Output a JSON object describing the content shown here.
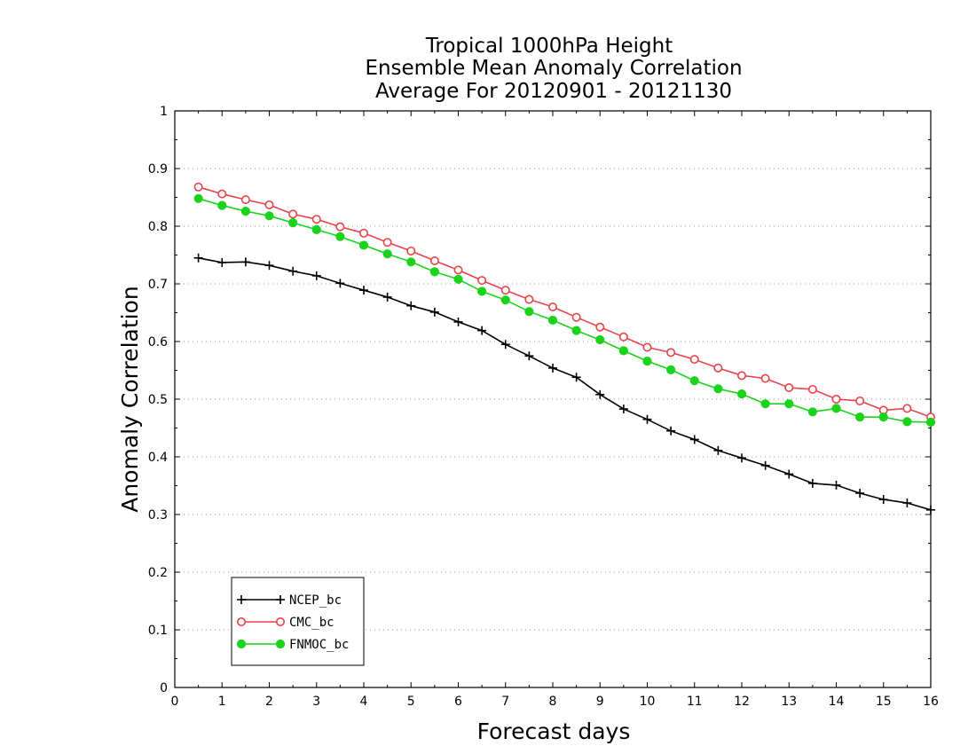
{
  "chart_data": {
    "type": "line",
    "title_lines": [
      "Tropical 1000hPa Height",
      "Ensemble Mean Anomaly Correlation",
      "Average For 20120901 - 20121130"
    ],
    "xlabel": "Forecast days",
    "ylabel": "Anomaly Correlation",
    "xlim": [
      0,
      16
    ],
    "ylim": [
      0,
      1
    ],
    "xticks": [
      "0",
      "1",
      "2",
      "3",
      "4",
      "5",
      "6",
      "7",
      "8",
      "9",
      "10",
      "11",
      "12",
      "13",
      "14",
      "15",
      "16"
    ],
    "yticks": [
      "0",
      "0.1",
      "0.2",
      "0.3",
      "0.4",
      "0.5",
      "0.6",
      "0.7",
      "0.8",
      "0.9",
      "1"
    ],
    "grid": "horizontal dotted",
    "legend_placement": "lower-left",
    "x": [
      0.5,
      1,
      1.5,
      2,
      2.5,
      3,
      3.5,
      4,
      4.5,
      5,
      5.5,
      6,
      6.5,
      7,
      7.5,
      8,
      8.5,
      9,
      9.5,
      10,
      10.5,
      11,
      11.5,
      12,
      12.5,
      13,
      13.5,
      14,
      14.5,
      15,
      15.5,
      16
    ],
    "series": [
      {
        "name": "NCEP_bc",
        "color": "#000000",
        "marker": "plus",
        "values": [
          0.745,
          0.737,
          0.738,
          0.732,
          0.722,
          0.714,
          0.701,
          0.689,
          0.677,
          0.662,
          0.651,
          0.634,
          0.619,
          0.595,
          0.575,
          0.554,
          0.538,
          0.508,
          0.483,
          0.465,
          0.445,
          0.43,
          0.411,
          0.398,
          0.385,
          0.37,
          0.354,
          0.351,
          0.337,
          0.326,
          0.32,
          0.308
        ]
      },
      {
        "name": "CMC_bc",
        "color": "#e8424a",
        "marker": "open-circle",
        "values": [
          0.868,
          0.856,
          0.846,
          0.837,
          0.821,
          0.812,
          0.799,
          0.788,
          0.772,
          0.757,
          0.74,
          0.724,
          0.706,
          0.689,
          0.673,
          0.66,
          0.642,
          0.625,
          0.608,
          0.59,
          0.581,
          0.569,
          0.554,
          0.541,
          0.536,
          0.52,
          0.517,
          0.5,
          0.497,
          0.481,
          0.484,
          0.469
        ]
      },
      {
        "name": "FNMOC_bc",
        "color": "#1bd31b",
        "marker": "filled-circle",
        "values": [
          0.848,
          0.836,
          0.826,
          0.818,
          0.806,
          0.794,
          0.782,
          0.767,
          0.752,
          0.738,
          0.721,
          0.708,
          0.687,
          0.672,
          0.652,
          0.637,
          0.619,
          0.603,
          0.584,
          0.566,
          0.551,
          0.532,
          0.518,
          0.509,
          0.492,
          0.492,
          0.478,
          0.484,
          0.469,
          0.469,
          0.461,
          0.46
        ]
      }
    ]
  }
}
